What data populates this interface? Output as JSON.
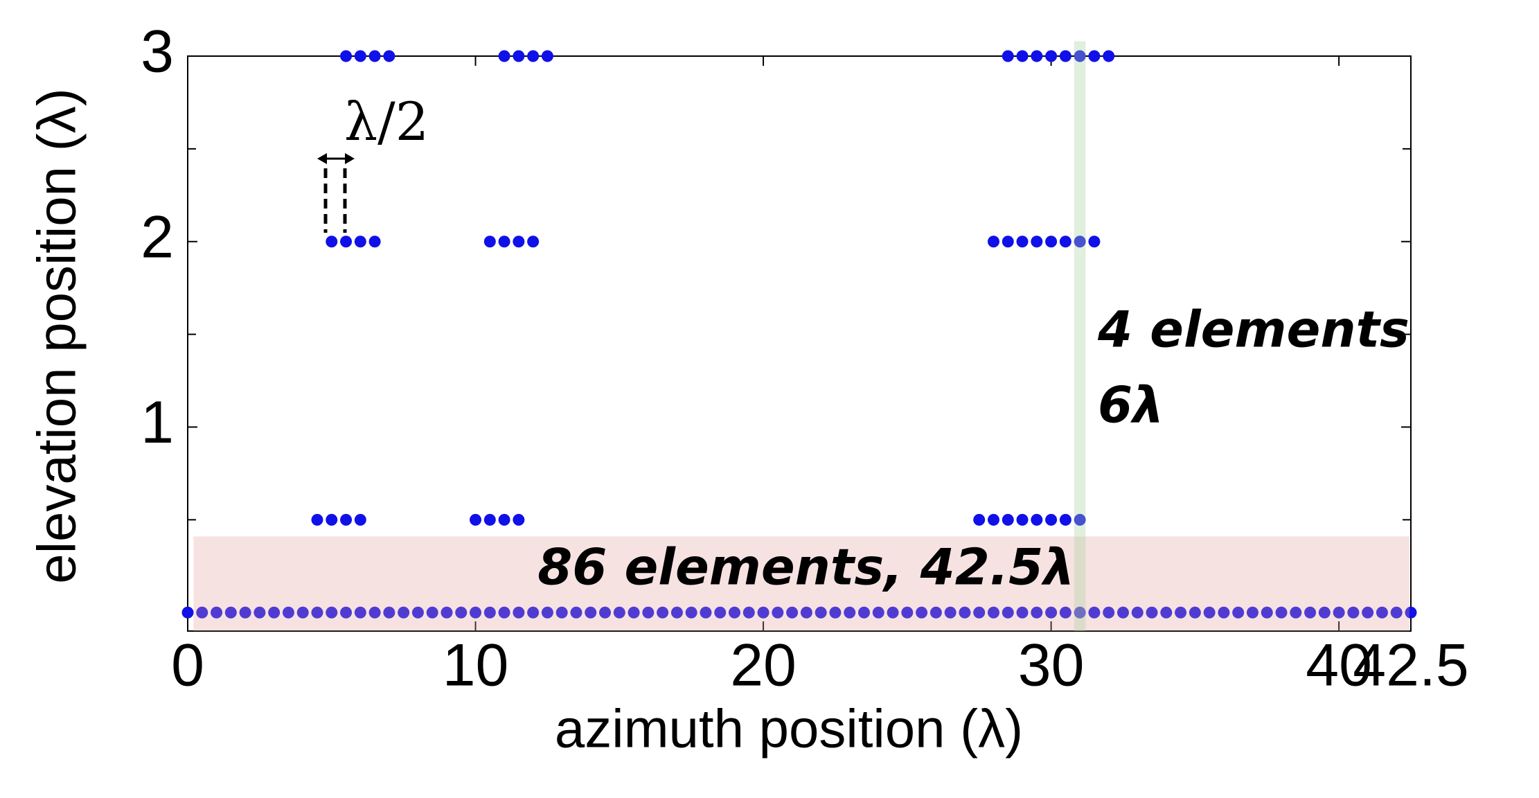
{
  "chart_data": {
    "type": "scatter",
    "xlabel": "azimuth position (λ)",
    "ylabel": "elevation position (λ)",
    "x": [
      5.5,
      6,
      6.5,
      7,
      11,
      11.5,
      12,
      12.5,
      28.5,
      29,
      29.5,
      30,
      30.5,
      31,
      31.5,
      32,
      5,
      5.5,
      6,
      6.5,
      10.5,
      11,
      11.5,
      12,
      28,
      28.5,
      29,
      29.5,
      30,
      30.5,
      31,
      31.5,
      4.5,
      5,
      5.5,
      6,
      10,
      10.5,
      11,
      11.5,
      27.5,
      28,
      28.5,
      29,
      29.5,
      30,
      30.5,
      31,
      0,
      0.5,
      1,
      1.5,
      2,
      2.5,
      3,
      3.5,
      4,
      4.5,
      5,
      5.5,
      6,
      6.5,
      7,
      7.5,
      8,
      8.5,
      9,
      9.5,
      10,
      10.5,
      11,
      11.5,
      12,
      12.5,
      13,
      13.5,
      14,
      14.5,
      15,
      15.5,
      16,
      16.5,
      17,
      17.5,
      18,
      18.5,
      19,
      19.5,
      20,
      20.5,
      21,
      21.5,
      22,
      22.5,
      23,
      23.5,
      24,
      24.5,
      25,
      25.5,
      26,
      26.5,
      27,
      27.5,
      28,
      28.5,
      29,
      29.5,
      30,
      30.5,
      31,
      31.5,
      32,
      32.5,
      33,
      33.5,
      34,
      34.5,
      35,
      35.5,
      36,
      36.5,
      37,
      37.5,
      38,
      38.5,
      39,
      39.5,
      40,
      40.5,
      41,
      41.5,
      42,
      42.5
    ],
    "values": [
      3,
      3,
      3,
      3,
      3,
      3,
      3,
      3,
      3,
      3,
      3,
      3,
      3,
      3,
      3,
      3,
      2,
      2,
      2,
      2,
      2,
      2,
      2,
      2,
      2,
      2,
      2,
      2,
      2,
      2,
      2,
      2,
      0.5,
      0.5,
      0.5,
      0.5,
      0.5,
      0.5,
      0.5,
      0.5,
      0.5,
      0.5,
      0.5,
      0.5,
      0.5,
      0.5,
      0.5,
      0.5,
      0,
      0,
      0,
      0,
      0,
      0,
      0,
      0,
      0,
      0,
      0,
      0,
      0,
      0,
      0,
      0,
      0,
      0,
      0,
      0,
      0,
      0,
      0,
      0,
      0,
      0,
      0,
      0,
      0,
      0,
      0,
      0,
      0,
      0,
      0,
      0,
      0,
      0,
      0,
      0,
      0,
      0,
      0,
      0,
      0,
      0,
      0,
      0,
      0,
      0,
      0,
      0,
      0,
      0,
      0,
      0,
      0,
      0,
      0,
      0,
      0,
      0,
      0,
      0,
      0,
      0,
      0,
      0,
      0,
      0,
      0,
      0,
      0,
      0,
      0,
      0,
      0,
      0,
      0,
      0,
      0,
      0,
      0,
      0,
      0,
      0
    ],
    "color": "#1010e8",
    "xlim": [
      0,
      42.5
    ],
    "xticks": [
      0,
      10,
      20,
      30,
      40,
      42.5
    ],
    "ylim": [
      -0.1,
      3
    ],
    "yticks": [
      1,
      2,
      3
    ],
    "yminor_ticks": [
      0.5,
      1.5,
      2.5
    ],
    "shaded_regions": [
      {
        "xlim": [
          0.2,
          42.45
        ],
        "ylim": [
          -0.1,
          0.41
        ],
        "color": "rgba(230,160,160,0.3)"
      },
      {
        "xlim": [
          30.8,
          31.2
        ],
        "ylim": [
          -0.1,
          3.08
        ],
        "color": "rgba(170,210,160,0.35)"
      }
    ],
    "annotations": [
      "λ/2",
      "4 elements",
      "6λ",
      "86 elements, 42.5λ"
    ]
  }
}
